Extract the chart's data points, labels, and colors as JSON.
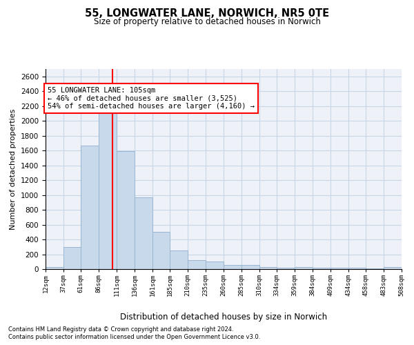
{
  "title": "55, LONGWATER LANE, NORWICH, NR5 0TE",
  "subtitle": "Size of property relative to detached houses in Norwich",
  "xlabel": "Distribution of detached houses by size in Norwich",
  "ylabel": "Number of detached properties",
  "bar_color": "#c9d9ec",
  "bar_edge_color": "#9ab5d0",
  "grid_color": "#c8d4e8",
  "bg_color": "#eef2f8",
  "redline_x": 105,
  "annotation_text": "55 LONGWATER LANE: 105sqm\n← 46% of detached houses are smaller (3,525)\n54% of semi-detached houses are larger (4,160) →",
  "footnote1": "Contains HM Land Registry data © Crown copyright and database right 2024.",
  "footnote2": "Contains public sector information licensed under the Open Government Licence v3.0.",
  "bin_edges": [
    12,
    37,
    61,
    86,
    111,
    136,
    161,
    185,
    210,
    235,
    260,
    285,
    310,
    334,
    359,
    384,
    409,
    434,
    458,
    483,
    508
  ],
  "bin_labels": [
    "12sqm",
    "37sqm",
    "61sqm",
    "86sqm",
    "111sqm",
    "136sqm",
    "161sqm",
    "185sqm",
    "210sqm",
    "235sqm",
    "260sqm",
    "285sqm",
    "310sqm",
    "334sqm",
    "359sqm",
    "384sqm",
    "409sqm",
    "434sqm",
    "458sqm",
    "483sqm",
    "508sqm"
  ],
  "bar_heights": [
    25,
    300,
    1670,
    2150,
    1595,
    965,
    505,
    250,
    125,
    100,
    55,
    55,
    30,
    15,
    30,
    15,
    20,
    15,
    5,
    30
  ],
  "ylim": [
    0,
    2700
  ],
  "yticks": [
    0,
    200,
    400,
    600,
    800,
    1000,
    1200,
    1400,
    1600,
    1800,
    2000,
    2200,
    2400,
    2600
  ]
}
